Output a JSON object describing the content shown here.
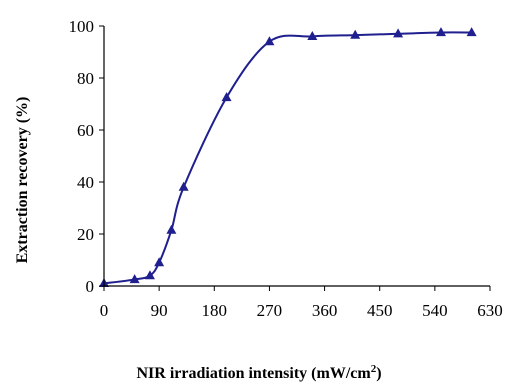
{
  "chart_data": {
    "type": "line",
    "title": "",
    "xlabel": "NIR irradiation intensity (mW/cm",
    "xlabel_sup": "2",
    "xlabel_end": ")",
    "ylabel": "Extraction recovery (%)",
    "xlim": [
      0,
      630
    ],
    "ylim": [
      0,
      100
    ],
    "x_ticks": [
      "0",
      "90",
      "180",
      "270",
      "360",
      "450",
      "540",
      "630"
    ],
    "y_ticks": [
      "0",
      "20",
      "40",
      "60",
      "80",
      "100"
    ],
    "grid": false,
    "legend": "none",
    "marker": "triangle",
    "color": "#1f1f8f",
    "series": [
      {
        "x": [
          0,
          50,
          75,
          90,
          110,
          130,
          200,
          270,
          340,
          410,
          480,
          550,
          600
        ],
        "values": [
          1,
          2.5,
          4,
          9,
          21.5,
          38,
          72.5,
          94,
          96,
          96.5,
          97,
          97.5,
          97.5
        ]
      }
    ]
  }
}
